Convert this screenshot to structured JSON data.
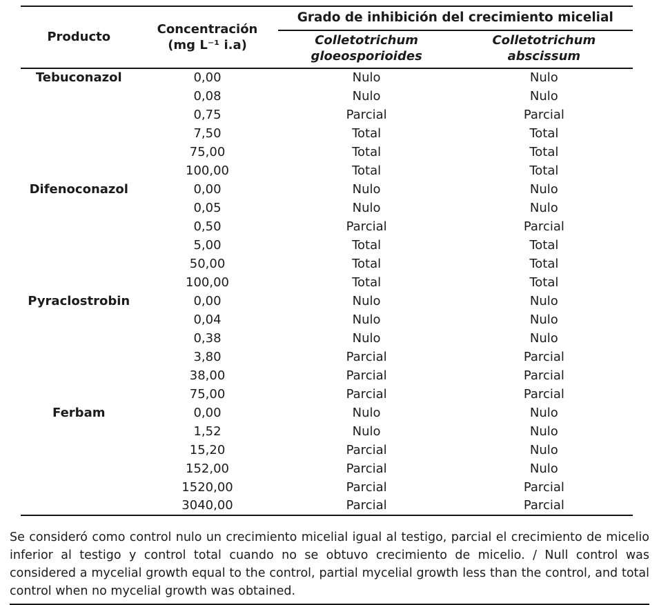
{
  "colors": {
    "background": "#ffffff",
    "text": "#1b1b1b",
    "rule": "#141414"
  },
  "table": {
    "headers": {
      "producto": "Producto",
      "concentracion_line1": "Concentración",
      "concentracion_line2": "(mg L⁻¹ i.a)",
      "grado": "Grado de inhibición del crecimiento micelial",
      "species1_line1": "Colletotrichum",
      "species1_line2": "gloeosporioides",
      "species2_line1": "Colletotrichum",
      "species2_line2": "abscissum"
    },
    "rows": [
      {
        "producto": "Tebuconazol",
        "concentracion": "0,00",
        "gloeosporioides": "Nulo",
        "abscissum": "Nulo"
      },
      {
        "producto": "",
        "concentracion": "0,08",
        "gloeosporioides": "Nulo",
        "abscissum": "Nulo"
      },
      {
        "producto": "",
        "concentracion": "0,75",
        "gloeosporioides": "Parcial",
        "abscissum": "Parcial"
      },
      {
        "producto": "",
        "concentracion": "7,50",
        "gloeosporioides": "Total",
        "abscissum": "Total"
      },
      {
        "producto": "",
        "concentracion": "75,00",
        "gloeosporioides": "Total",
        "abscissum": "Total"
      },
      {
        "producto": "",
        "concentracion": "100,00",
        "gloeosporioides": "Total",
        "abscissum": "Total"
      },
      {
        "producto": "Difenoconazol",
        "concentracion": "0,00",
        "gloeosporioides": "Nulo",
        "abscissum": "Nulo"
      },
      {
        "producto": "",
        "concentracion": "0,05",
        "gloeosporioides": "Nulo",
        "abscissum": "Nulo"
      },
      {
        "producto": "",
        "concentracion": "0,50",
        "gloeosporioides": "Parcial",
        "abscissum": "Parcial"
      },
      {
        "producto": "",
        "concentracion": "5,00",
        "gloeosporioides": "Total",
        "abscissum": "Total"
      },
      {
        "producto": "",
        "concentracion": "50,00",
        "gloeosporioides": "Total",
        "abscissum": "Total"
      },
      {
        "producto": "",
        "concentracion": "100,00",
        "gloeosporioides": "Total",
        "abscissum": "Total"
      },
      {
        "producto": "Pyraclostrobin",
        "concentracion": "0,00",
        "gloeosporioides": "Nulo",
        "abscissum": "Nulo"
      },
      {
        "producto": "",
        "concentracion": "0,04",
        "gloeosporioides": "Nulo",
        "abscissum": "Nulo"
      },
      {
        "producto": "",
        "concentracion": "0,38",
        "gloeosporioides": "Nulo",
        "abscissum": "Nulo"
      },
      {
        "producto": "",
        "concentracion": "3,80",
        "gloeosporioides": "Parcial",
        "abscissum": "Parcial"
      },
      {
        "producto": "",
        "concentracion": "38,00",
        "gloeosporioides": "Parcial",
        "abscissum": "Parcial"
      },
      {
        "producto": "",
        "concentracion": "75,00",
        "gloeosporioides": "Parcial",
        "abscissum": "Parcial"
      },
      {
        "producto": "Ferbam",
        "concentracion": "0,00",
        "gloeosporioides": "Nulo",
        "abscissum": "Nulo"
      },
      {
        "producto": "",
        "concentracion": "1,52",
        "gloeosporioides": "Nulo",
        "abscissum": "Nulo"
      },
      {
        "producto": "",
        "concentracion": "15,20",
        "gloeosporioides": "Parcial",
        "abscissum": "Nulo"
      },
      {
        "producto": "",
        "concentracion": "152,00",
        "gloeosporioides": "Parcial",
        "abscissum": "Nulo"
      },
      {
        "producto": "",
        "concentracion": "1520,00",
        "gloeosporioides": "Parcial",
        "abscissum": "Parcial"
      },
      {
        "producto": "",
        "concentracion": "3040,00",
        "gloeosporioides": "Parcial",
        "abscissum": "Parcial"
      }
    ]
  },
  "footnote": "Se consideró como control nulo un crecimiento micelial igual al testigo, parcial el crecimiento de micelio inferior al testigo y control total cuando no se obtuvo crecimiento de micelio. / Null control was considered a mycelial growth equal to the control, partial mycelial growth less than the control, and total control when no mycelial growth was obtained."
}
